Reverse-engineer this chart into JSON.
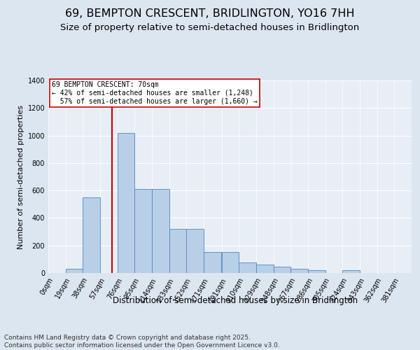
{
  "title": "69, BEMPTON CRESCENT, BRIDLINGTON, YO16 7HH",
  "subtitle": "Size of property relative to semi-detached houses in Bridlington",
  "xlabel": "Distribution of semi-detached houses by size in Bridlington",
  "ylabel": "Number of semi-detached properties",
  "property_label": "69 BEMPTON CRESCENT: 70sqm",
  "pct_smaller": 42,
  "n_smaller": 1248,
  "pct_larger": 57,
  "n_larger": 1660,
  "bin_labels": [
    "0sqm",
    "19sqm",
    "38sqm",
    "57sqm",
    "76sqm",
    "95sqm",
    "114sqm",
    "133sqm",
    "152sqm",
    "171sqm",
    "191sqm",
    "210sqm",
    "229sqm",
    "248sqm",
    "267sqm",
    "286sqm",
    "305sqm",
    "324sqm",
    "343sqm",
    "362sqm",
    "381sqm"
  ],
  "bin_left_edges": [
    0,
    19,
    38,
    57,
    76,
    95,
    114,
    133,
    152,
    171,
    191,
    210,
    229,
    248,
    267,
    286,
    305,
    324,
    343,
    362,
    381
  ],
  "bar_heights": [
    0,
    30,
    550,
    0,
    1020,
    610,
    610,
    320,
    320,
    155,
    155,
    75,
    60,
    45,
    30,
    20,
    0,
    20,
    0,
    0,
    0
  ],
  "bar_color": "#b8cfe8",
  "bar_edge_color": "#5588bb",
  "vline_color": "#cc0000",
  "vline_x": 70,
  "xlim_left": 0,
  "xlim_right": 400,
  "ylim": [
    0,
    1400
  ],
  "yticks": [
    0,
    200,
    400,
    600,
    800,
    1000,
    1200,
    1400
  ],
  "bg_color": "#dce6f0",
  "plot_bg_color": "#e8eef5",
  "grid_color": "#ffffff",
  "annotation_box_facecolor": "#ffffff",
  "annotation_box_edgecolor": "#cc0000",
  "footer": "Contains HM Land Registry data © Crown copyright and database right 2025.\nContains public sector information licensed under the Open Government Licence v3.0.",
  "title_fontsize": 11.5,
  "subtitle_fontsize": 9.5,
  "ylabel_fontsize": 8,
  "xlabel_fontsize": 8.5,
  "tick_fontsize": 7,
  "ann_fontsize": 7,
  "footer_fontsize": 6.5
}
